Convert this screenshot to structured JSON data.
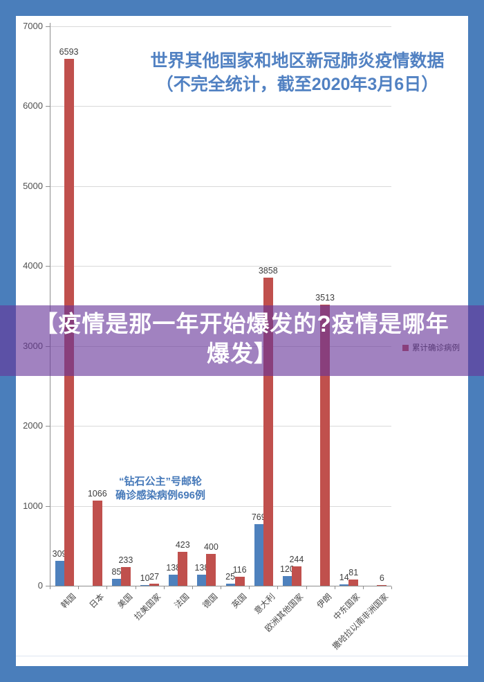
{
  "frame": {
    "background_color": "#4A7EBB",
    "paper_color": "#FFFFFF"
  },
  "title": {
    "line1": "世界其他国家和地区新冠肺炎疫情数据",
    "line2": "（不完全统计，截至2020年3月6日）",
    "color": "#5181C2"
  },
  "banner": {
    "line1": "【疫情是那一年开始爆发的?疫情是哪年",
    "line2": "爆发】",
    "text_color": "#FFFFFF",
    "overlay_color": "rgba(103,53,153,0.62)"
  },
  "annotation": {
    "line1": "“钻石公主”号邮轮",
    "line2": "确诊感染病例696例",
    "color": "#4679B9"
  },
  "legend": {
    "items": [
      {
        "label": "累计确诊病例",
        "color": "#C0504D"
      }
    ]
  },
  "chart_data": {
    "type": "bar",
    "title": "世界其他国家和地区新冠肺炎疫情数据（不完全统计，截至2020年3月6日）",
    "categories": [
      "韩国",
      "日本",
      "美国",
      "拉美国家",
      "法国",
      "德国",
      "英国",
      "意大利",
      "欧洲其他国家",
      "伊朗",
      "中东国家",
      "撒哈拉以南非洲国家"
    ],
    "series": [
      {
        "name": "",
        "color": "#4E81BD",
        "values": [
          309,
          null,
          85,
          10,
          138,
          138,
          25,
          769,
          120,
          null,
          14,
          null
        ]
      },
      {
        "name": "累计确诊病例",
        "color": "#C0504D",
        "values": [
          6593,
          1066,
          233,
          27,
          423,
          400,
          116,
          3858,
          244,
          3513,
          81,
          6
        ]
      }
    ],
    "xlabel": "",
    "ylabel": "",
    "ylim": [
      0,
      7000
    ],
    "ytick_step": 1000,
    "yticks": [
      0,
      1000,
      2000,
      3000,
      4000,
      5000,
      6000,
      7000
    ],
    "grid": true,
    "legend_position": "right-middle",
    "bar_value_labels_shown": true
  }
}
